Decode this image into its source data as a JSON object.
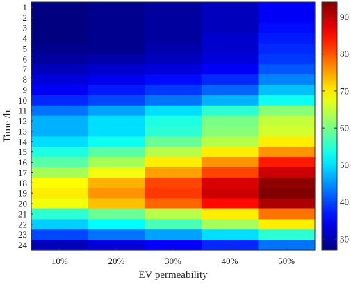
{
  "chart_data": {
    "type": "heatmap",
    "title": "",
    "xlabel": "EV permeability",
    "ylabel": "Time /h",
    "x_categories": [
      "10%",
      "20%",
      "30%",
      "40%",
      "50%"
    ],
    "y_categories": [
      "1",
      "2",
      "3",
      "4",
      "5",
      "6",
      "7",
      "8",
      "9",
      "10",
      "11",
      "12",
      "13",
      "14",
      "15",
      "16",
      "17",
      "18",
      "19",
      "20",
      "21",
      "22",
      "23",
      "24"
    ],
    "colormap": "jet",
    "color_range": [
      27,
      94
    ],
    "colorbar_ticks": [
      30,
      40,
      50,
      60,
      70,
      80,
      90
    ],
    "grid": false,
    "values": [
      [
        27,
        28,
        29,
        31,
        35
      ],
      [
        27,
        28,
        29,
        31,
        35
      ],
      [
        27,
        28,
        29,
        31,
        36
      ],
      [
        27,
        28,
        29,
        32,
        37
      ],
      [
        28,
        28,
        30,
        32,
        38
      ],
      [
        29,
        30,
        31,
        33,
        39
      ],
      [
        31,
        32,
        33,
        35,
        41
      ],
      [
        33,
        34,
        36,
        38,
        44
      ],
      [
        35,
        37,
        39,
        42,
        48
      ],
      [
        38,
        40,
        43,
        47,
        53
      ],
      [
        43,
        46,
        50,
        55,
        61
      ],
      [
        47,
        50,
        54,
        60,
        65
      ],
      [
        47,
        50,
        55,
        61,
        66
      ],
      [
        50,
        53,
        59,
        64,
        70
      ],
      [
        54,
        58,
        64,
        70,
        76
      ],
      [
        58,
        63,
        70,
        76,
        84
      ],
      [
        63,
        68,
        75,
        81,
        89
      ],
      [
        69,
        74,
        81,
        88,
        93
      ],
      [
        70,
        76,
        82,
        89,
        94
      ],
      [
        68,
        73,
        79,
        85,
        91
      ],
      [
        55,
        59,
        64,
        70,
        78
      ],
      [
        49,
        52,
        57,
        63,
        70
      ],
      [
        40,
        43,
        46,
        50,
        55
      ],
      [
        31,
        33,
        35,
        38,
        43
      ]
    ]
  }
}
